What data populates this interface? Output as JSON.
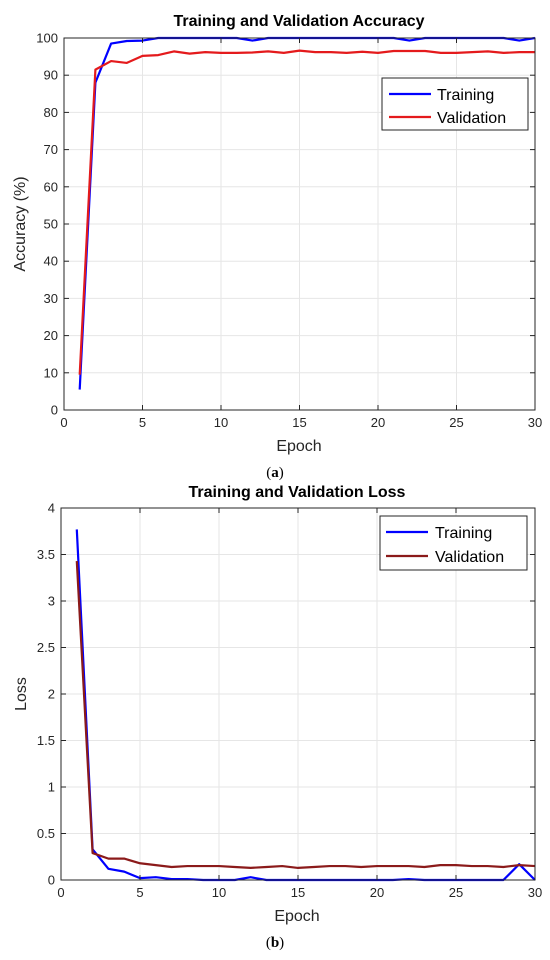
{
  "chart_data": [
    {
      "type": "line",
      "title": "Training and Validation Accuracy",
      "xlabel": "Epoch",
      "ylabel": "Accuracy (%)",
      "xlim": [
        0,
        30
      ],
      "ylim": [
        0,
        100
      ],
      "xticks": [
        0,
        5,
        10,
        15,
        20,
        25,
        30
      ],
      "yticks": [
        0,
        10,
        20,
        30,
        40,
        50,
        60,
        70,
        80,
        90,
        100
      ],
      "grid": true,
      "legend": "top-right",
      "panel_label": "(a)",
      "panel_letter": "a",
      "x": [
        1,
        2,
        3,
        4,
        5,
        6,
        7,
        8,
        9,
        10,
        11,
        12,
        13,
        14,
        15,
        16,
        17,
        18,
        19,
        20,
        21,
        22,
        23,
        24,
        25,
        26,
        27,
        28,
        29,
        30
      ],
      "series": [
        {
          "name": "Training",
          "color": "#0000ff",
          "values": [
            5.5,
            88,
            98.5,
            99.2,
            99.3,
            100,
            100,
            100,
            100,
            100,
            100,
            99.3,
            100,
            100,
            100,
            100,
            100,
            100,
            100,
            100,
            100,
            99.3,
            100,
            100,
            100,
            100,
            100,
            100,
            99.3,
            100
          ]
        },
        {
          "name": "Validation",
          "color": "#e41a1c",
          "values": [
            9.5,
            91.5,
            93.8,
            93.3,
            95.2,
            95.4,
            96.4,
            95.8,
            96.2,
            96.0,
            96.0,
            96.1,
            96.4,
            96.0,
            96.6,
            96.2,
            96.2,
            96.0,
            96.3,
            96.0,
            96.5,
            96.5,
            96.5,
            96.0,
            96.0,
            96.2,
            96.4,
            96.0,
            96.2,
            96.2
          ]
        }
      ]
    },
    {
      "type": "line",
      "title": "Training and Validation Loss",
      "xlabel": "Epoch",
      "ylabel": "Loss",
      "xlim": [
        0,
        30
      ],
      "ylim": [
        0,
        4
      ],
      "xticks": [
        0,
        5,
        10,
        15,
        20,
        25,
        30
      ],
      "yticks": [
        0,
        0.5,
        1,
        1.5,
        2,
        2.5,
        3,
        3.5,
        4
      ],
      "grid": true,
      "legend": "top-right",
      "panel_label": "(b)",
      "panel_letter": "b",
      "x": [
        1,
        2,
        3,
        4,
        5,
        6,
        7,
        8,
        9,
        10,
        11,
        12,
        13,
        14,
        15,
        16,
        17,
        18,
        19,
        20,
        21,
        22,
        23,
        24,
        25,
        26,
        27,
        28,
        29,
        30
      ],
      "series": [
        {
          "name": "Training",
          "color": "#0000ff",
          "values": [
            3.77,
            0.33,
            0.12,
            0.09,
            0.02,
            0.03,
            0.01,
            0.01,
            0.0,
            0.0,
            0.0,
            0.03,
            0.0,
            0.0,
            0.0,
            0.0,
            0.0,
            0.0,
            0.0,
            0.0,
            0.0,
            0.01,
            0.0,
            0.0,
            0.0,
            0.0,
            0.0,
            0.0,
            0.17,
            0.0
          ]
        },
        {
          "name": "Validation",
          "color": "#8b1a1a",
          "values": [
            3.43,
            0.29,
            0.23,
            0.23,
            0.18,
            0.16,
            0.14,
            0.15,
            0.15,
            0.15,
            0.14,
            0.13,
            0.14,
            0.15,
            0.13,
            0.14,
            0.15,
            0.15,
            0.14,
            0.15,
            0.15,
            0.15,
            0.14,
            0.16,
            0.16,
            0.15,
            0.15,
            0.14,
            0.16,
            0.15
          ]
        }
      ]
    }
  ]
}
